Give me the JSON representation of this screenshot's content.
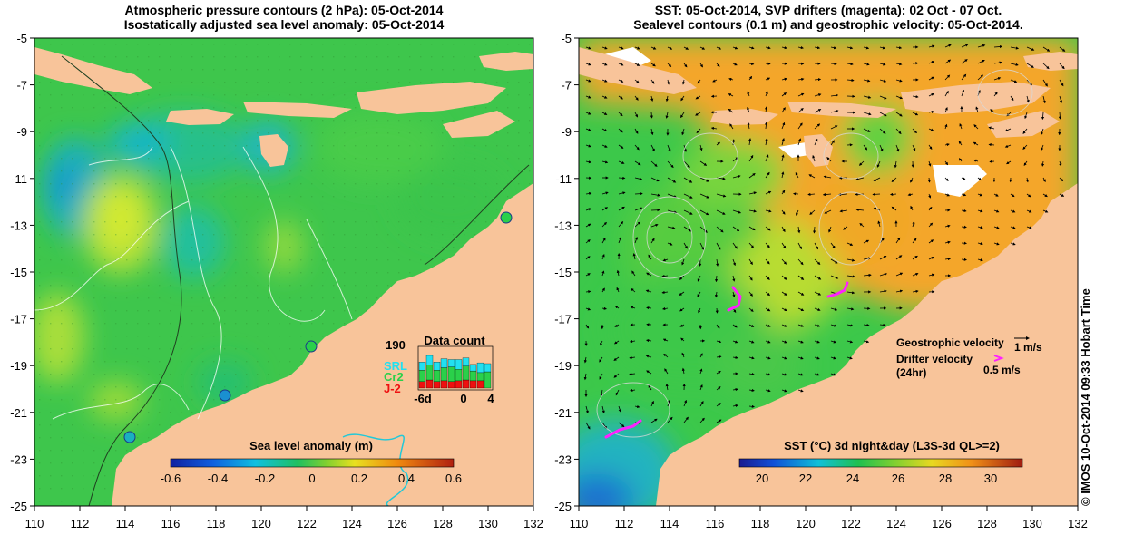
{
  "left_panel": {
    "title_line1": "Atmospheric pressure contours (2 hPa): 05-Oct-2014",
    "title_line2": "Isostatically adjusted sea level anomaly: 05-Oct-2014",
    "colorbar_label": "Sea level anomaly (m)",
    "colorbar_ticks": [
      "-0.6",
      "-0.4",
      "-0.2",
      "0",
      "0.2",
      "0.4",
      "0.6"
    ],
    "inset": {
      "title": "Data count",
      "ymax_label": "190",
      "x_labels": [
        "-6d",
        "0",
        "4"
      ],
      "legend": [
        {
          "label": "SRL",
          "color": "#22e0f0"
        },
        {
          "label": "Cr2",
          "color": "#2ad04a"
        },
        {
          "label": "J-2",
          "color": "#ee1010"
        }
      ]
    }
  },
  "right_panel": {
    "title_line1": "SST: 05-Oct-2014, SVP drifters (magenta): 02 Oct - 07 Oct.",
    "title_line2": "Sealevel contours (0.1 m) and geostrophic velocity: 05-Oct-2014.",
    "colorbar_label": "SST (°C) 3d night&day (L3S-3d QL>=2)",
    "colorbar_ticks": [
      "20",
      "22",
      "24",
      "26",
      "28",
      "30"
    ],
    "legend": {
      "geo_label": "Geostrophic velocity",
      "geo_scale": "1 m/s",
      "drifter_label_1": "Drifter velocity",
      "drifter_label_2": "(24hr)",
      "drifter_scale": "0.5 m/s"
    }
  },
  "axes": {
    "lon_ticks": [
      "110",
      "112",
      "114",
      "116",
      "118",
      "120",
      "122",
      "124",
      "126",
      "128",
      "130",
      "132"
    ],
    "lat_ticks": [
      "-5",
      "-7",
      "-9",
      "-11",
      "-13",
      "-15",
      "-17",
      "-19",
      "-21",
      "-23",
      "-25"
    ]
  },
  "credit": "© IMOS 10-Oct-2014 09:33 Hobart Time",
  "colors": {
    "land": "#f8c49a",
    "ocean_green": "#3cc84a",
    "sst_orange": "#f4a62a",
    "drifter": "#ff20ff"
  }
}
